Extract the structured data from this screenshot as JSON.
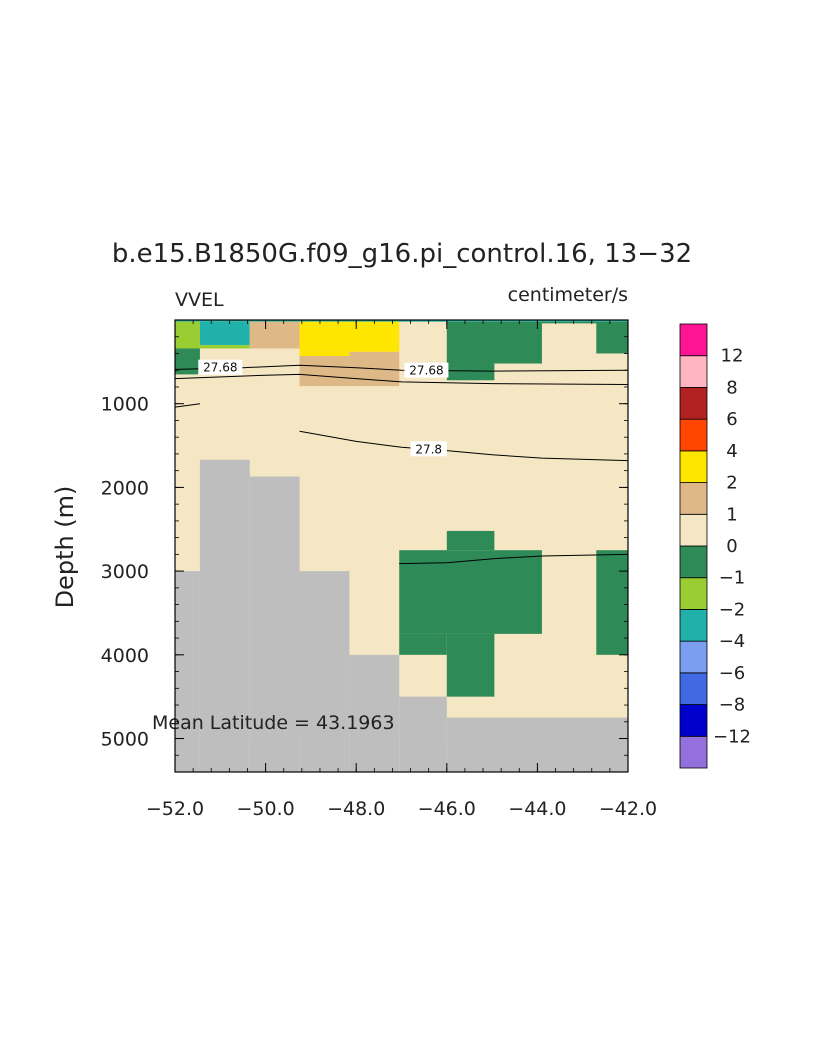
{
  "chart_data": {
    "type": "heatmap",
    "title": "b.e15.B1850G.f09_g16.pi_control.16, 13−32",
    "left_subtitle": "VVEL",
    "right_subtitle": "centimeter/s",
    "xlabel": "",
    "ylabel": "Depth (m)",
    "xlim": [
      -52.0,
      -42.0
    ],
    "ylim": [
      0,
      5400
    ],
    "y_reversed": true,
    "x_ticks": [
      -52,
      -50,
      -48,
      -46,
      -44,
      -42
    ],
    "x_tick_labels": [
      "−52.0",
      "−50.0",
      "−48.0",
      "−46.0",
      "−44.0",
      "−42.0"
    ],
    "y_ticks": [
      1000,
      2000,
      3000,
      4000,
      5000
    ],
    "y_tick_labels": [
      "1000",
      "2000",
      "3000",
      "4000",
      "5000"
    ],
    "annotation": "Mean Latitude = 43.1963",
    "land_color": "#bebebe",
    "colorbar": {
      "levels": [
        "−12",
        "−8",
        "−6",
        "−4",
        "−2",
        "−1",
        "0",
        "1",
        "2",
        "4",
        "6",
        "8",
        "12"
      ],
      "colors": [
        "#9370db",
        "#0000cd",
        "#4169e1",
        "#7b9ff0",
        "#20b2aa",
        "#9acd32",
        "#2e8b57",
        "#f5e6c4",
        "#deb887",
        "#ffe600",
        "#ff4500",
        "#b22222",
        "#ffb6c1",
        "#ff1493"
      ]
    },
    "cells": [
      {
        "x": [
          -52.0,
          -42.0
        ],
        "y": [
          0,
          5000
        ],
        "class": "0..1"
      },
      {
        "x": [
          -52.0,
          -42.0
        ],
        "y": [
          0,
          20
        ],
        "class": "-4..-2"
      },
      {
        "x": [
          -52.0,
          -51.45
        ],
        "y": [
          20,
          340
        ],
        "class": "-2..-1"
      },
      {
        "x": [
          -51.45,
          -50.35
        ],
        "y": [
          20,
          300
        ],
        "class": "-4..-2"
      },
      {
        "x": [
          -51.45,
          -50.35
        ],
        "y": [
          300,
          340
        ],
        "class": "-2..-1"
      },
      {
        "x": [
          -52.0,
          -51.45
        ],
        "y": [
          340,
          650
        ],
        "class": "-1..0"
      },
      {
        "x": [
          -50.35,
          -49.25
        ],
        "y": [
          20,
          340
        ],
        "class": "1..2"
      },
      {
        "x": [
          -49.25,
          -47.05
        ],
        "y": [
          20,
          380
        ],
        "class": "2..4"
      },
      {
        "x": [
          -49.25,
          -48.15
        ],
        "y": [
          380,
          430
        ],
        "class": "2..4"
      },
      {
        "x": [
          -48.15,
          -47.05
        ],
        "y": [
          380,
          560
        ],
        "class": "1..2"
      },
      {
        "x": [
          -49.25,
          -48.15
        ],
        "y": [
          430,
          520
        ],
        "class": "1..2"
      },
      {
        "x": [
          -49.25,
          -47.05
        ],
        "y": [
          520,
          790
        ],
        "class": "1..2"
      },
      {
        "x": [
          -46.0,
          -43.9
        ],
        "y": [
          20,
          520
        ],
        "class": "-1..0"
      },
      {
        "x": [
          -46.0,
          -44.95
        ],
        "y": [
          520,
          720
        ],
        "class": "-1..0"
      },
      {
        "x": [
          -42.7,
          -42.0
        ],
        "y": [
          20,
          400
        ],
        "class": "-1..0"
      },
      {
        "x": [
          -43.9,
          -42.7
        ],
        "y": [
          20,
          40
        ],
        "class": "-1..0"
      },
      {
        "x": [
          -47.05,
          -43.9
        ],
        "y": [
          2750,
          3750
        ],
        "class": "-1..0"
      },
      {
        "x": [
          -46.0,
          -44.95
        ],
        "y": [
          2520,
          2750
        ],
        "class": "-1..0"
      },
      {
        "x": [
          -47.05,
          -46.0
        ],
        "y": [
          3750,
          4000
        ],
        "class": "-1..0"
      },
      {
        "x": [
          -46.0,
          -44.95
        ],
        "y": [
          3750,
          4500
        ],
        "class": "-1..0"
      },
      {
        "x": [
          -42.7,
          -42.0
        ],
        "y": [
          2750,
          4000
        ],
        "class": "-1..0"
      }
    ],
    "land": [
      {
        "x": [
          -52.0,
          -51.45
        ],
        "y": [
          3000,
          5400
        ]
      },
      {
        "x": [
          -51.45,
          -50.35
        ],
        "y": [
          1670,
          5400
        ]
      },
      {
        "x": [
          -50.35,
          -49.25
        ],
        "y": [
          1870,
          5400
        ]
      },
      {
        "x": [
          -49.25,
          -48.15
        ],
        "y": [
          3000,
          5400
        ]
      },
      {
        "x": [
          -48.15,
          -47.05
        ],
        "y": [
          4000,
          5400
        ]
      },
      {
        "x": [
          -47.05,
          -46.0
        ],
        "y": [
          4500,
          5400
        ]
      },
      {
        "x": [
          -46.0,
          -42.0
        ],
        "y": [
          4750,
          5400
        ]
      }
    ],
    "contours": [
      {
        "level": "27.68",
        "points": [
          [
            -52.0,
            590
          ],
          [
            -50.5,
            570
          ],
          [
            -49.25,
            540
          ],
          [
            -48.0,
            570
          ],
          [
            -47.0,
            600
          ],
          [
            -45.0,
            610
          ],
          [
            -42.0,
            600
          ]
        ],
        "label_at": [
          -51.0,
          570
        ],
        "label_at2": [
          -46.45,
          605
        ]
      },
      {
        "level": "",
        "points": [
          [
            -52.0,
            700
          ],
          [
            -50.0,
            660
          ],
          [
            -49.25,
            650
          ],
          [
            -48.0,
            700
          ],
          [
            -47.0,
            740
          ],
          [
            -45.0,
            760
          ],
          [
            -42.0,
            770
          ]
        ]
      },
      {
        "level": "",
        "points": [
          [
            -52.0,
            1040
          ],
          [
            -51.45,
            1000
          ]
        ]
      },
      {
        "level": "27.8",
        "points": [
          [
            -49.25,
            1330
          ],
          [
            -48.0,
            1450
          ],
          [
            -47.0,
            1520
          ],
          [
            -46.0,
            1560
          ],
          [
            -45.0,
            1610
          ],
          [
            -43.9,
            1650
          ],
          [
            -42.0,
            1680
          ]
        ],
        "label_at": [
          -46.4,
          1545
        ]
      },
      {
        "level": "",
        "points": [
          [
            -47.05,
            2910
          ],
          [
            -46.0,
            2900
          ],
          [
            -44.95,
            2850
          ],
          [
            -43.9,
            2820
          ],
          [
            -42.0,
            2800
          ]
        ]
      }
    ]
  }
}
